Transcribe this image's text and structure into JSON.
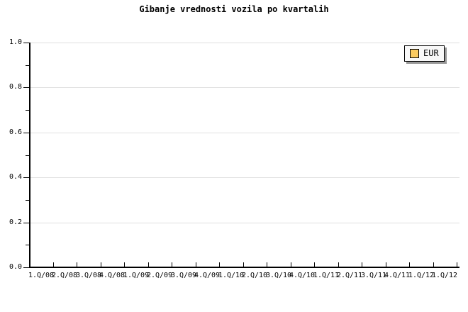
{
  "chart_data": {
    "type": "line",
    "title": "Gibanje vrednosti vozila po kvartalih",
    "categories": [
      "1.Q/08",
      "2.Q/08",
      "3.Q/08",
      "4.Q/08",
      "1.Q/09",
      "2.Q/09",
      "3.Q/09",
      "4.Q/09",
      "1.Q/10",
      "2.Q/10",
      "3.Q/10",
      "4.Q/10",
      "1.Q/11",
      "2.Q/11",
      "3.Q/11",
      "4.Q/11",
      "1.Q/12",
      "1.Q/12"
    ],
    "series": [
      {
        "name": "EUR",
        "values": []
      }
    ],
    "xlabel": "",
    "ylabel": "",
    "ylim": [
      0.0,
      1.0
    ],
    "yticks": [
      "0.0",
      "0.2",
      "0.4",
      "0.6",
      "0.8",
      "1.0"
    ],
    "y_minor_tick_interval": 0.1,
    "grid": "horizontal-major",
    "legend_position": "top-right",
    "plot_empty": true
  },
  "colors": {
    "background": "#ffffff",
    "axis": "#000000",
    "grid": "#e0e0e0",
    "text": "#000000",
    "legend_background": "#f8f8f8",
    "legend_border": "#000000",
    "legend_shadow": "#999999",
    "series_eur_swatch": "#fbcb60"
  }
}
